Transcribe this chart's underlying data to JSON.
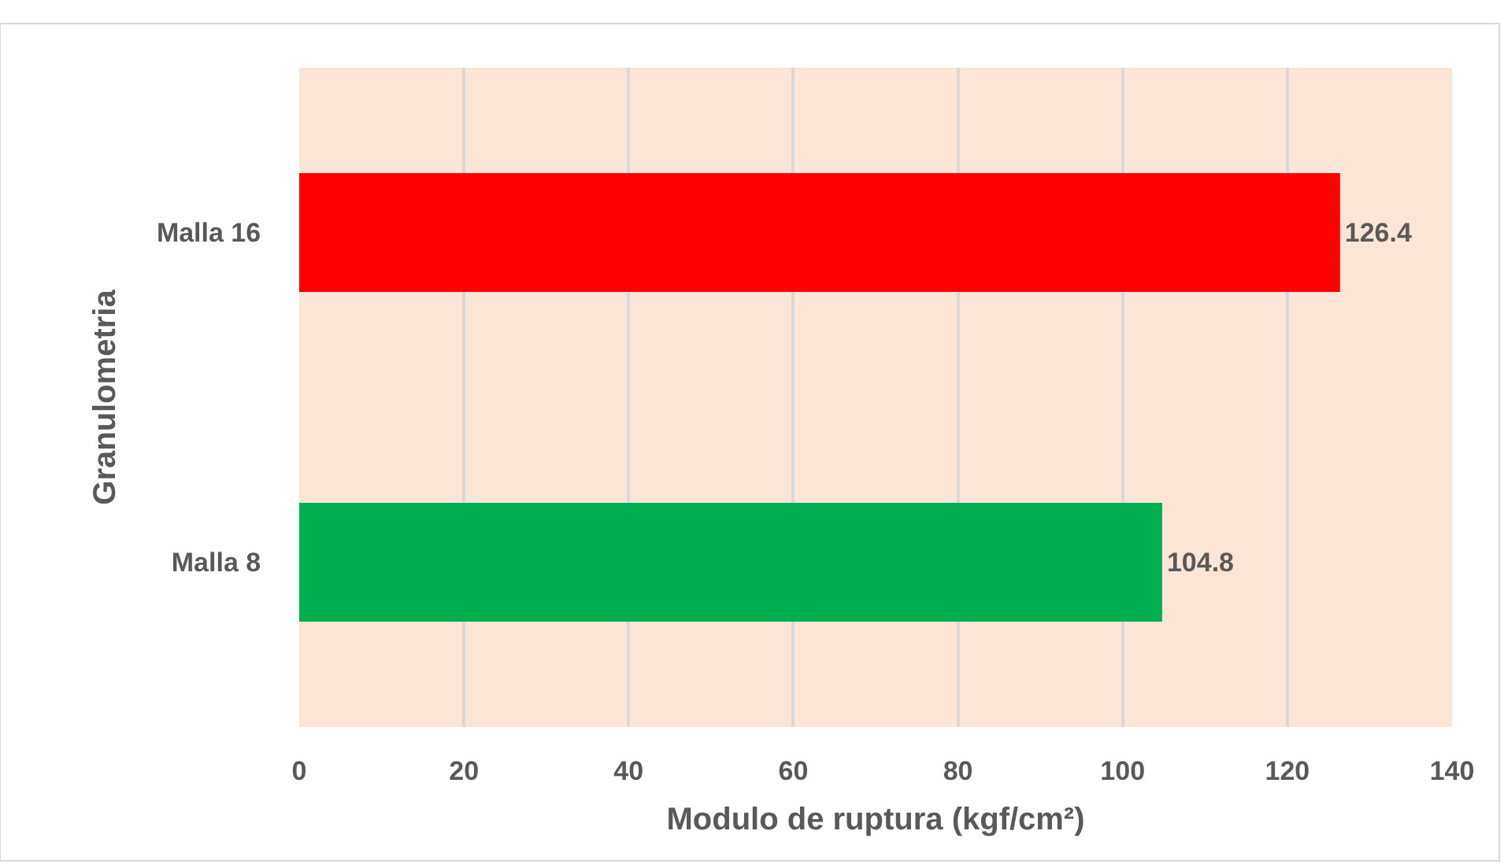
{
  "chart_data": {
    "type": "bar",
    "orientation": "horizontal",
    "xlabel": "Modulo de ruptura (kgf/cm²)",
    "ylabel": "Granulometria",
    "categories": [
      "Malla 16",
      "Malla 8"
    ],
    "values": [
      126.4,
      104.8
    ],
    "colors": [
      "#ff0000",
      "#00b050"
    ],
    "xlim": [
      0,
      140
    ],
    "xticks": [
      0,
      20,
      40,
      60,
      80,
      100,
      120,
      140
    ],
    "grid": "x",
    "data_labels": true
  }
}
